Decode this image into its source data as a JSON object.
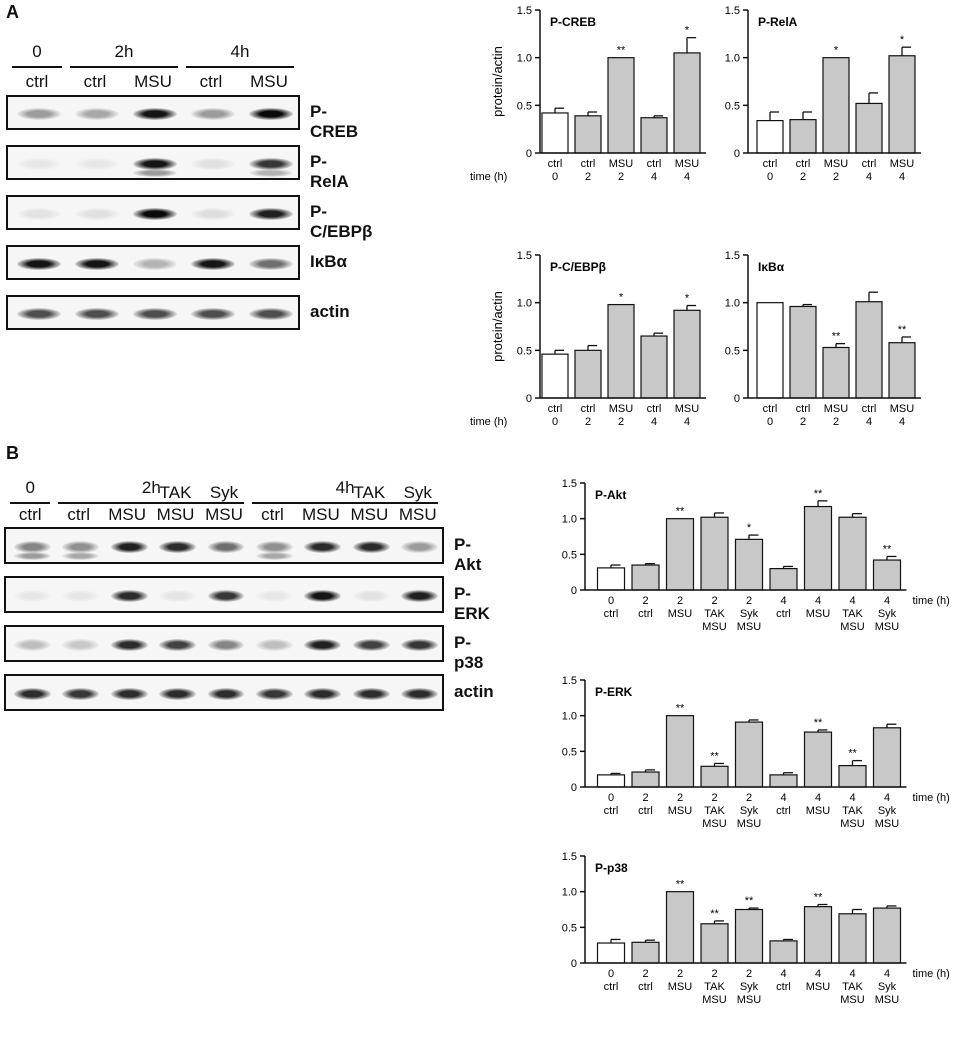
{
  "panels": {
    "a": "A",
    "b": "B"
  },
  "blotA": {
    "time_labels": [
      "0",
      "2h",
      "4h"
    ],
    "lanes": [
      "ctrl",
      "ctrl",
      "MSU",
      "ctrl",
      "MSU"
    ],
    "blots": [
      {
        "name": "P-CREB",
        "intensity": [
          0.35,
          0.3,
          0.95,
          0.35,
          1.0
        ],
        "sub": [
          0,
          0,
          0,
          0,
          0
        ]
      },
      {
        "name": "P-RelA",
        "intensity": [
          0.02,
          0.02,
          0.95,
          0.05,
          0.8
        ],
        "sub": [
          0,
          0,
          0.35,
          0,
          0.25
        ]
      },
      {
        "name": "P-C/EBPβ",
        "intensity": [
          0.04,
          0.05,
          1.0,
          0.06,
          0.9
        ],
        "sub": [
          0,
          0,
          0,
          0,
          0
        ]
      },
      {
        "name": "IκBα",
        "intensity": [
          0.95,
          0.95,
          0.25,
          0.95,
          0.55
        ],
        "sub": [
          0,
          0,
          0,
          0,
          0
        ]
      },
      {
        "name": "actin",
        "intensity": [
          0.7,
          0.7,
          0.7,
          0.7,
          0.7
        ],
        "sub": [
          0,
          0,
          0,
          0,
          0
        ]
      }
    ]
  },
  "blotB": {
    "time_labels": [
      "0",
      "2h",
      "4h"
    ],
    "lanes_top": [
      "",
      "",
      "",
      "TAK",
      "Syk",
      "",
      "",
      "TAK",
      "Syk"
    ],
    "lanes": [
      "ctrl",
      "ctrl",
      "MSU",
      "MSU",
      "MSU",
      "ctrl",
      "MSU",
      "MSU",
      "MSU"
    ],
    "blots": [
      {
        "name": "P-Akt",
        "intensity": [
          0.45,
          0.4,
          0.9,
          0.85,
          0.55,
          0.4,
          0.85,
          0.85,
          0.35
        ],
        "sub": [
          0.35,
          0.3,
          0,
          0,
          0,
          0.3,
          0,
          0,
          0
        ]
      },
      {
        "name": "P-ERK",
        "intensity": [
          0.02,
          0.02,
          0.85,
          0.03,
          0.8,
          0.02,
          0.95,
          0.04,
          0.9
        ],
        "sub": [
          0,
          0,
          0,
          0,
          0,
          0,
          0,
          0,
          0
        ]
      },
      {
        "name": "P-p38",
        "intensity": [
          0.2,
          0.15,
          0.85,
          0.75,
          0.45,
          0.2,
          0.9,
          0.75,
          0.8
        ],
        "sub": [
          0,
          0,
          0,
          0,
          0,
          0,
          0,
          0,
          0
        ]
      },
      {
        "name": "actin",
        "intensity": [
          0.85,
          0.8,
          0.85,
          0.85,
          0.85,
          0.8,
          0.85,
          0.85,
          0.85
        ],
        "sub": [
          0,
          0,
          0,
          0,
          0,
          0,
          0,
          0,
          0
        ]
      }
    ]
  },
  "chart_data": [
    {
      "id": "creb",
      "type": "bar",
      "title": "P-CREB",
      "ylabel": "protein/actin",
      "xprefix": "time (h)",
      "ylim": [
        0,
        1.5
      ],
      "yticks": [
        "0",
        "0.5",
        "1.0",
        "1.5"
      ],
      "cat_top": [
        "ctrl",
        "ctrl",
        "MSU",
        "ctrl",
        "MSU"
      ],
      "cat_bot": [
        "0",
        "2",
        "2",
        "4",
        "4"
      ],
      "values": [
        0.42,
        0.39,
        1.0,
        0.37,
        1.05
      ],
      "errors": [
        0.05,
        0.04,
        0,
        0.02,
        0.16
      ],
      "sig": [
        "",
        "",
        "**",
        "",
        "*"
      ],
      "fill": [
        "#ffffff",
        "#c8c8c8",
        "#c8c8c8",
        "#c8c8c8",
        "#c8c8c8"
      ]
    },
    {
      "id": "rela",
      "type": "bar",
      "title": "P-RelA",
      "ylabel": "",
      "xprefix": "",
      "ylim": [
        0,
        1.5
      ],
      "yticks": [
        "0",
        "0.5",
        "1.0",
        "1.5"
      ],
      "cat_top": [
        "ctrl",
        "ctrl",
        "MSU",
        "ctrl",
        "MSU"
      ],
      "cat_bot": [
        "0",
        "2",
        "2",
        "4",
        "4"
      ],
      "values": [
        0.34,
        0.35,
        1.0,
        0.52,
        1.02
      ],
      "errors": [
        0.09,
        0.08,
        0,
        0.11,
        0.09
      ],
      "sig": [
        "",
        "",
        "*",
        "",
        "*"
      ],
      "fill": [
        "#ffffff",
        "#c8c8c8",
        "#c8c8c8",
        "#c8c8c8",
        "#c8c8c8"
      ]
    },
    {
      "id": "cebp",
      "type": "bar",
      "title": "P-C/EBPβ",
      "ylabel": "protein/actin",
      "xprefix": "time (h)",
      "ylim": [
        0,
        1.5
      ],
      "yticks": [
        "0",
        "0.5",
        "1.0",
        "1.5"
      ],
      "cat_top": [
        "ctrl",
        "ctrl",
        "MSU",
        "ctrl",
        "MSU"
      ],
      "cat_bot": [
        "0",
        "2",
        "2",
        "4",
        "4"
      ],
      "values": [
        0.46,
        0.5,
        0.98,
        0.65,
        0.92
      ],
      "errors": [
        0.04,
        0.05,
        0,
        0.03,
        0.05
      ],
      "sig": [
        "",
        "",
        "*",
        "",
        "*"
      ],
      "fill": [
        "#ffffff",
        "#c8c8c8",
        "#c8c8c8",
        "#c8c8c8",
        "#c8c8c8"
      ]
    },
    {
      "id": "ikba",
      "type": "bar",
      "title": "IκBα",
      "ylabel": "",
      "xprefix": "",
      "ylim": [
        0,
        1.5
      ],
      "yticks": [
        "0",
        "0.5",
        "1.0",
        "1.5"
      ],
      "cat_top": [
        "ctrl",
        "ctrl",
        "MSU",
        "ctrl",
        "MSU"
      ],
      "cat_bot": [
        "0",
        "2",
        "2",
        "4",
        "4"
      ],
      "values": [
        1.0,
        0.96,
        0.53,
        1.01,
        0.58
      ],
      "errors": [
        0,
        0.02,
        0.04,
        0.1,
        0.06
      ],
      "sig": [
        "",
        "",
        "**",
        "",
        "**"
      ],
      "fill": [
        "#ffffff",
        "#c8c8c8",
        "#c8c8c8",
        "#c8c8c8",
        "#c8c8c8"
      ]
    },
    {
      "id": "akt",
      "type": "bar",
      "title": "P-Akt",
      "ylabel": "",
      "xsuffix": "time (h)",
      "ylim": [
        0,
        1.5
      ],
      "yticks": [
        "0",
        "0.5",
        "1.0",
        "1.5"
      ],
      "cat_top": [
        "0",
        "2",
        "2",
        "2",
        "2",
        "4",
        "4",
        "4",
        "4"
      ],
      "cat_mid": [
        "ctrl",
        "ctrl",
        "MSU",
        "TAK",
        "Syk",
        "ctrl",
        "MSU",
        "TAK",
        "Syk"
      ],
      "cat_bot": [
        "",
        "",
        "",
        "MSU",
        "MSU",
        "",
        "",
        "MSU",
        "MSU"
      ],
      "values": [
        0.31,
        0.35,
        1.0,
        1.02,
        0.71,
        0.3,
        1.17,
        1.02,
        0.42
      ],
      "errors": [
        0.04,
        0.02,
        0,
        0.06,
        0.06,
        0.03,
        0.08,
        0.05,
        0.05
      ],
      "sig": [
        "",
        "",
        "**",
        "",
        "*",
        "",
        "**",
        "",
        "**"
      ],
      "fill": [
        "#ffffff",
        "#c8c8c8",
        "#c8c8c8",
        "#c8c8c8",
        "#c8c8c8",
        "#c8c8c8",
        "#c8c8c8",
        "#c8c8c8",
        "#c8c8c8"
      ]
    },
    {
      "id": "erk",
      "type": "bar",
      "title": "P-ERK",
      "ylabel": "",
      "xsuffix": "time (h)",
      "ylim": [
        0,
        1.5
      ],
      "yticks": [
        "0",
        "0.5",
        "1.0",
        "1.5"
      ],
      "cat_top": [
        "0",
        "2",
        "2",
        "2",
        "2",
        "4",
        "4",
        "4",
        "4"
      ],
      "cat_mid": [
        "ctrl",
        "ctrl",
        "MSU",
        "TAK",
        "Syk",
        "ctrl",
        "MSU",
        "TAK",
        "Syk"
      ],
      "cat_bot": [
        "",
        "",
        "",
        "MSU",
        "MSU",
        "",
        "",
        "MSU",
        "MSU"
      ],
      "values": [
        0.17,
        0.21,
        1.0,
        0.29,
        0.91,
        0.17,
        0.77,
        0.3,
        0.83
      ],
      "errors": [
        0.02,
        0.03,
        0,
        0.04,
        0.03,
        0.03,
        0.03,
        0.07,
        0.05
      ],
      "sig": [
        "",
        "",
        "**",
        "**",
        "",
        "",
        "**",
        "**",
        ""
      ],
      "fill": [
        "#ffffff",
        "#c8c8c8",
        "#c8c8c8",
        "#c8c8c8",
        "#c8c8c8",
        "#c8c8c8",
        "#c8c8c8",
        "#c8c8c8",
        "#c8c8c8"
      ]
    },
    {
      "id": "p38",
      "type": "bar",
      "title": "P-p38",
      "ylabel": "",
      "xsuffix": "time (h)",
      "ylim": [
        0,
        1.5
      ],
      "yticks": [
        "0",
        "0.5",
        "1.0",
        "1.5"
      ],
      "cat_top": [
        "0",
        "2",
        "2",
        "2",
        "2",
        "4",
        "4",
        "4",
        "4"
      ],
      "cat_mid": [
        "ctrl",
        "ctrl",
        "MSU",
        "TAK",
        "Syk",
        "ctrl",
        "MSU",
        "TAK",
        "Syk"
      ],
      "cat_bot": [
        "",
        "",
        "",
        "MSU",
        "MSU",
        "",
        "",
        "MSU",
        "MSU"
      ],
      "values": [
        0.28,
        0.29,
        1.0,
        0.55,
        0.75,
        0.31,
        0.79,
        0.69,
        0.77
      ],
      "errors": [
        0.05,
        0.03,
        0,
        0.04,
        0.02,
        0.02,
        0.03,
        0.06,
        0.03
      ],
      "sig": [
        "",
        "",
        "**",
        "**",
        "**",
        "",
        "**",
        "",
        ""
      ],
      "fill": [
        "#ffffff",
        "#c8c8c8",
        "#c8c8c8",
        "#c8c8c8",
        "#c8c8c8",
        "#c8c8c8",
        "#c8c8c8",
        "#c8c8c8",
        "#c8c8c8"
      ]
    }
  ]
}
